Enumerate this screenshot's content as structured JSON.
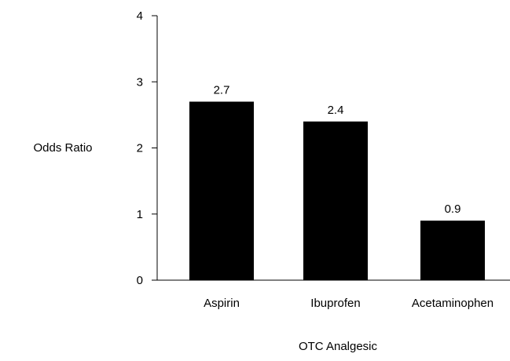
{
  "chart_data": {
    "type": "bar",
    "title": "",
    "xlabel": "OTC Analgesic",
    "ylabel": "Odds Ratio",
    "categories": [
      "Aspirin",
      "Ibuprofen",
      "Acetaminophen"
    ],
    "values": [
      2.7,
      2.4,
      0.9
    ],
    "data_labels": [
      "2.7",
      "2.4",
      "0.9"
    ],
    "ylim": [
      0,
      4
    ],
    "yticks": [
      "0",
      "1",
      "2",
      "3",
      "4"
    ],
    "grid": false,
    "legend": "none",
    "bar_color": "#000000"
  }
}
